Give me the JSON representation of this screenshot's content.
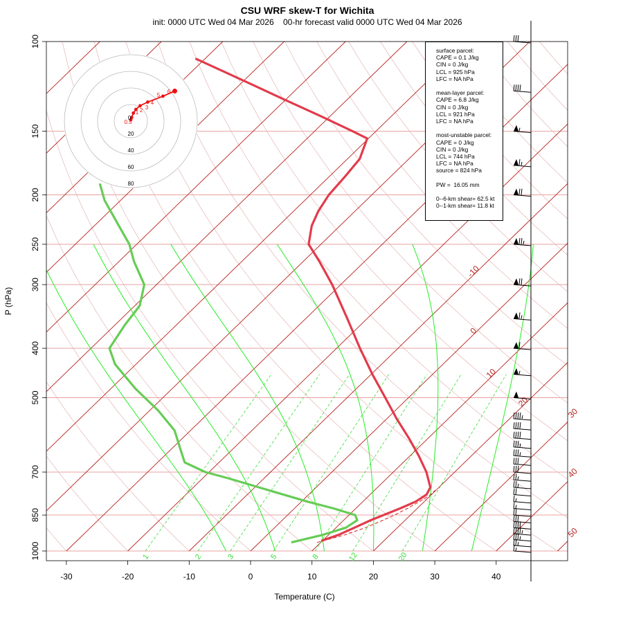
{
  "title": "CSU WRF skew-T for Wichita",
  "subtitle": "init: 0000 UTC Wed 04 Mar 2026    00-hr forecast valid 0000 UTC Wed 04 Mar 2026",
  "chart_data": {
    "type": "line",
    "title": "CSU WRF skew-T for Wichita",
    "xlabel": "Temperature (C)",
    "ylabel": "P (hPa)",
    "x_ticks": [
      -30,
      -20,
      -10,
      0,
      10,
      20,
      30,
      40
    ],
    "y_ticks": [
      100,
      150,
      200,
      250,
      300,
      400,
      500,
      700,
      850,
      1000
    ],
    "pressure_range": [
      1000,
      100
    ],
    "temperature_range": [
      -33,
      45
    ],
    "skew": "skew-T log-p",
    "isotherm_labels": [
      -10,
      0,
      10,
      20,
      30,
      40,
      50
    ],
    "mixing_ratio_labels": [
      "1",
      "2",
      "3",
      "5",
      "8",
      "12",
      "20"
    ],
    "temperature_profile": [
      {
        "p": 955,
        "t": 9.8
      },
      {
        "p": 930,
        "t": 11.6
      },
      {
        "p": 900,
        "t": 13.0
      },
      {
        "p": 870,
        "t": 14.4
      },
      {
        "p": 850,
        "t": 15.6
      },
      {
        "p": 825,
        "t": 17.2
      },
      {
        "p": 800,
        "t": 18.6
      },
      {
        "p": 775,
        "t": 19.2
      },
      {
        "p": 750,
        "t": 18.6
      },
      {
        "p": 700,
        "t": 15.4
      },
      {
        "p": 650,
        "t": 11.4
      },
      {
        "p": 600,
        "t": 6.8
      },
      {
        "p": 550,
        "t": 1.6
      },
      {
        "p": 500,
        "t": -3.8
      },
      {
        "p": 450,
        "t": -9.8
      },
      {
        "p": 400,
        "t": -16.2
      },
      {
        "p": 350,
        "t": -23.2
      },
      {
        "p": 300,
        "t": -31.4
      },
      {
        "p": 270,
        "t": -37.4
      },
      {
        "p": 250,
        "t": -42.0
      },
      {
        "p": 230,
        "t": -44.6
      },
      {
        "p": 215,
        "t": -46.0
      },
      {
        "p": 200,
        "t": -47.0
      },
      {
        "p": 185,
        "t": -47.4
      },
      {
        "p": 170,
        "t": -48.0
      },
      {
        "p": 155,
        "t": -50.2
      },
      {
        "p": 150,
        "t": -53.8
      },
      {
        "p": 140,
        "t": -61.6
      },
      {
        "p": 130,
        "t": -70.2
      },
      {
        "p": 120,
        "t": -79.4
      },
      {
        "p": 108,
        "t": -91.6
      }
    ],
    "dewpoint_profile": [
      {
        "p": 962,
        "t": 5.2
      },
      {
        "p": 930,
        "t": 9.0
      },
      {
        "p": 900,
        "t": 11.6
      },
      {
        "p": 870,
        "t": 12.2
      },
      {
        "p": 850,
        "t": 11.0
      },
      {
        "p": 825,
        "t": 6.4
      },
      {
        "p": 800,
        "t": 1.0
      },
      {
        "p": 760,
        "t": -7.2
      },
      {
        "p": 720,
        "t": -15.8
      },
      {
        "p": 700,
        "t": -20.6
      },
      {
        "p": 670,
        "t": -25.6
      },
      {
        "p": 630,
        "t": -28.6
      },
      {
        "p": 580,
        "t": -32.6
      },
      {
        "p": 530,
        "t": -38.6
      },
      {
        "p": 480,
        "t": -46.0
      },
      {
        "p": 430,
        "t": -53.4
      },
      {
        "p": 400,
        "t": -57.0
      },
      {
        "p": 360,
        "t": -58.4
      },
      {
        "p": 330,
        "t": -59.2
      },
      {
        "p": 300,
        "t": -62.0
      },
      {
        "p": 270,
        "t": -67.6
      },
      {
        "p": 250,
        "t": -71.2
      },
      {
        "p": 230,
        "t": -76.0
      },
      {
        "p": 205,
        "t": -82.6
      },
      {
        "p": 190,
        "t": -86.2
      }
    ],
    "parcel_profile": [
      {
        "p": 962,
        "t": 9.4
      },
      {
        "p": 950,
        "t": 10.6
      },
      {
        "p": 930,
        "t": 12.6
      },
      {
        "p": 900,
        "t": 14.8
      },
      {
        "p": 870,
        "t": 16.4
      },
      {
        "p": 850,
        "t": 17.4
      },
      {
        "p": 825,
        "t": 18.4
      },
      {
        "p": 800,
        "t": 19.2
      },
      {
        "p": 780,
        "t": 19.8
      },
      {
        "p": 760,
        "t": 19.9
      }
    ],
    "wind_barbs": [
      {
        "p": 1000,
        "kt": 15
      },
      {
        "p": 975,
        "kt": 25
      },
      {
        "p": 950,
        "kt": 35
      },
      {
        "p": 925,
        "kt": 45
      },
      {
        "p": 900,
        "kt": 40
      },
      {
        "p": 875,
        "kt": 30
      },
      {
        "p": 850,
        "kt": 20
      },
      {
        "p": 825,
        "kt": 15
      },
      {
        "p": 800,
        "kt": 15
      },
      {
        "p": 775,
        "kt": 20
      },
      {
        "p": 750,
        "kt": 25
      },
      {
        "p": 725,
        "kt": 25
      },
      {
        "p": 700,
        "kt": 30
      },
      {
        "p": 675,
        "kt": 30
      },
      {
        "p": 650,
        "kt": 35
      },
      {
        "p": 625,
        "kt": 35
      },
      {
        "p": 600,
        "kt": 40
      },
      {
        "p": 575,
        "kt": 40
      },
      {
        "p": 550,
        "kt": 45
      },
      {
        "p": 500,
        "kt": 50
      },
      {
        "p": 450,
        "kt": 55
      },
      {
        "p": 400,
        "kt": 60
      },
      {
        "p": 350,
        "kt": 65
      },
      {
        "p": 300,
        "kt": 70
      },
      {
        "p": 250,
        "kt": 75
      },
      {
        "p": 200,
        "kt": 70
      },
      {
        "p": 175,
        "kt": 65
      },
      {
        "p": 150,
        "kt": 55
      },
      {
        "p": 125,
        "kt": 40
      },
      {
        "p": 100,
        "kt": 30
      }
    ],
    "hodograph": {
      "ring_labels": [
        "20",
        "40",
        "60",
        "80"
      ],
      "point_labels": [
        "0",
        "1",
        "2",
        "3",
        "4",
        "5",
        "6",
        "0.5"
      ],
      "points_kt": [
        {
          "u": 0,
          "v": 2
        },
        {
          "u": 1,
          "v": 5
        },
        {
          "u": 3,
          "v": 11
        },
        {
          "u": 6,
          "v": 16
        },
        {
          "u": 11,
          "v": 21
        },
        {
          "u": 20,
          "v": 26
        },
        {
          "u": 38,
          "v": 34
        },
        {
          "u": 52,
          "v": 41
        }
      ]
    },
    "legend_placement": "top-right",
    "grid": true
  },
  "info": {
    "surface_header": "surface parcel:",
    "surface_cape": "CAPE = 0.1 J/kg",
    "surface_cin": "CIN = 0 J/kg",
    "surface_lcl": "LCL = 925 hPa",
    "surface_lfc": "LFC = NA hPa",
    "mean_header": "mean-layer parcel:",
    "mean_cape": "CAPE = 6.8 J/kg",
    "mean_cin": "CIN = 0 J/kg",
    "mean_lcl": "LCL = 921 hPa",
    "mean_lfc": "LFC = NA hPa",
    "mu_header": "most-unstable parcel:",
    "mu_cape": "CAPE = 0 J/kg",
    "mu_cin": "CIN = 0 J/kg",
    "mu_lcl": "LCL = 744 hPa",
    "mu_lfc": "LFC = NA hPa",
    "mu_source": "source = 824 hPa",
    "pw": "PW =  16.05 mm",
    "shear6": "0--6-km shear= 62.5 kt",
    "shear1": "0--1-km shear= 11.8 kt"
  },
  "colors": {
    "isotherm": "#b5221c",
    "isobar": "#e8a0a0",
    "dry_adiabat": "#e6b4b4",
    "moist_adiabat": "#22ee22",
    "mixing_ratio": "#33dd33",
    "temperature": "#e23b4b",
    "dewpoint": "#66cc55",
    "parcel": "#d42020",
    "hodograph": "#ee1111"
  }
}
